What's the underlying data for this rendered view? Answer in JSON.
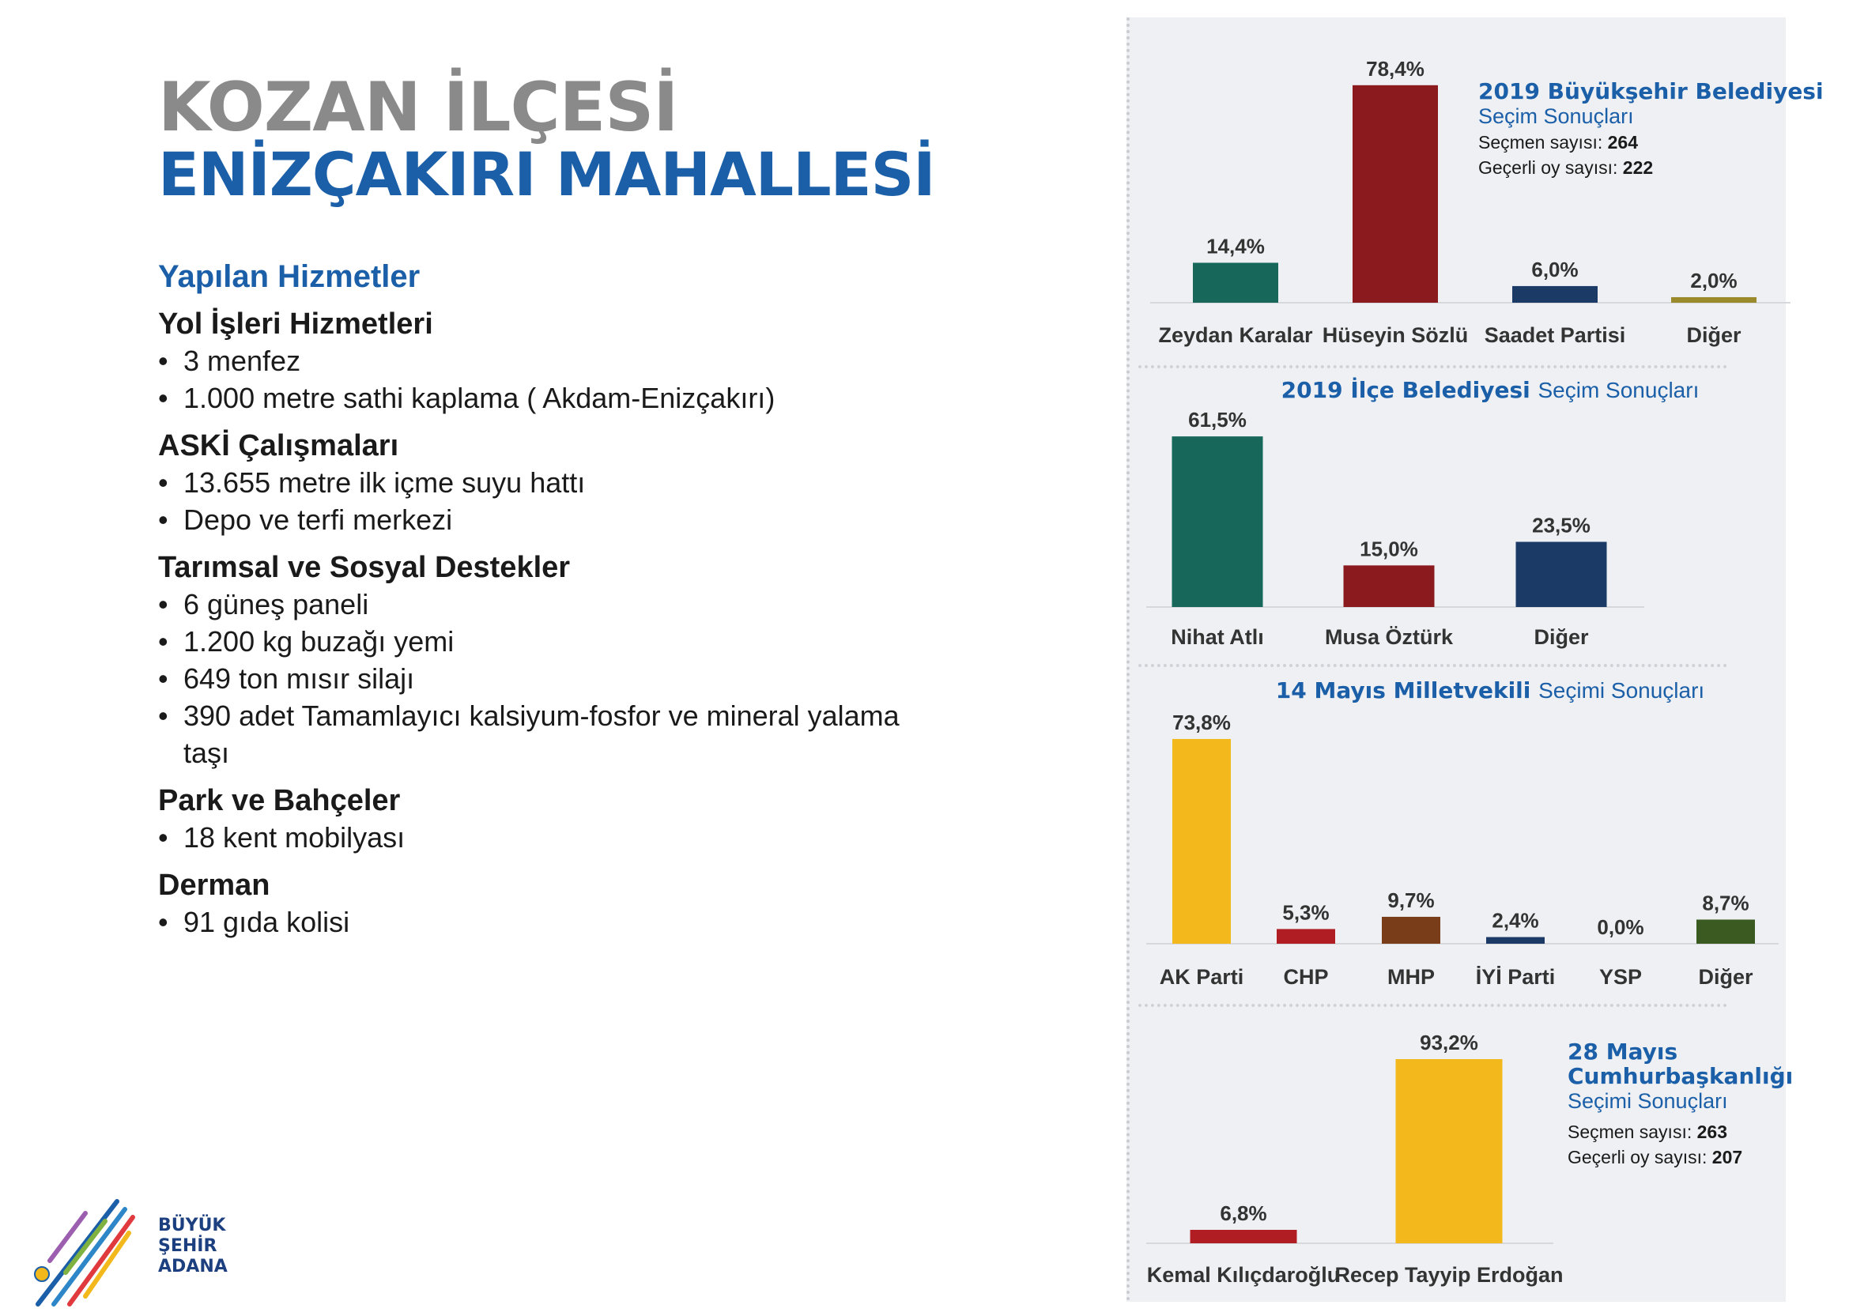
{
  "header": {
    "line1": "KOZAN İLÇESİ",
    "line2": "ENİZÇAKIRI MAHALLESİ"
  },
  "services": {
    "heading": "Yapılan Hizmetler",
    "groups": [
      {
        "title": "Yol İşleri Hizmetleri",
        "items": [
          "3 menfez",
          "1.000 metre sathi kaplama ( Akdam-Enizçakırı)"
        ]
      },
      {
        "title": "ASKİ Çalışmaları",
        "items": [
          "13.655 metre ilk içme suyu hattı",
          "Depo ve terfi merkezi"
        ]
      },
      {
        "title": "Tarımsal ve Sosyal Destekler",
        "items": [
          "6 güneş paneli",
          "1.200 kg buzağı yemi",
          "649 ton mısır silajı",
          "390 adet Tamamlayıcı kalsiyum-fosfor ve mineral yalama taşı"
        ]
      },
      {
        "title": "Park ve Bahçeler",
        "items": [
          "18 kent mobilyası"
        ]
      },
      {
        "title": "Derman",
        "items": [
          "91 gıda kolisi"
        ]
      }
    ]
  },
  "logo": {
    "line1": "BÜYÜK",
    "line2": "ŞEHİR",
    "line3": "ADANA"
  },
  "chart_data": [
    {
      "type": "bar",
      "title_bold": "2019 Büyükşehir Belediyesi",
      "title_rest": "Seçim Sonuçları",
      "info": [
        {
          "label": "Seçmen sayısı:",
          "value": "264"
        },
        {
          "label": "Geçerli oy sayısı:",
          "value": "222"
        }
      ],
      "categories": [
        "Zeydan Karalar",
        "Hüseyin Sözlü",
        "Saadet Partisi",
        "Diğer"
      ],
      "values": [
        14.4,
        78.4,
        6.0,
        2.0
      ],
      "labels": [
        "14,4%",
        "78,4%",
        "6,0%",
        "2,0%"
      ],
      "colors": [
        "#17685a",
        "#8b1a1e",
        "#1c3a66",
        "#9a8a2c"
      ]
    },
    {
      "type": "bar",
      "title_bold": "2019 İlçe Belediyesi",
      "title_rest": "Seçim Sonuçları",
      "categories": [
        "Nihat Atlı",
        "Musa Öztürk",
        "Diğer"
      ],
      "values": [
        61.5,
        15.0,
        23.5
      ],
      "labels": [
        "61,5%",
        "15,0%",
        "23,5%"
      ],
      "colors": [
        "#17685a",
        "#8b1a1e",
        "#1c3a66"
      ]
    },
    {
      "type": "bar",
      "title_bold": "14 Mayıs Milletvekili",
      "title_rest": "Seçimi Sonuçları",
      "categories": [
        "AK Parti",
        "CHP",
        "MHP",
        "İYİ Parti",
        "YSP",
        "Diğer"
      ],
      "values": [
        73.8,
        5.3,
        9.7,
        2.4,
        0.0,
        8.7
      ],
      "labels": [
        "73,8%",
        "5,3%",
        "9,7%",
        "2,4%",
        "0,0%",
        "8,7%"
      ],
      "colors": [
        "#f2b81c",
        "#b01e24",
        "#7a3d1a",
        "#1c3a66",
        "#888888",
        "#3a5a22"
      ]
    },
    {
      "type": "bar",
      "title_bold": "28 Mayıs Cumhurbaşkanlığı",
      "title_rest": "Seçimi Sonuçları",
      "info": [
        {
          "label": "Seçmen sayısı:",
          "value": "263"
        },
        {
          "label": "Geçerli oy sayısı:",
          "value": "207"
        }
      ],
      "categories": [
        "Kemal Kılıçdaroğlu",
        "Recep Tayyip Erdoğan"
      ],
      "values": [
        6.8,
        93.2
      ],
      "labels": [
        "6,8%",
        "93,2%"
      ],
      "colors": [
        "#b01e24",
        "#f2b81c"
      ]
    }
  ]
}
